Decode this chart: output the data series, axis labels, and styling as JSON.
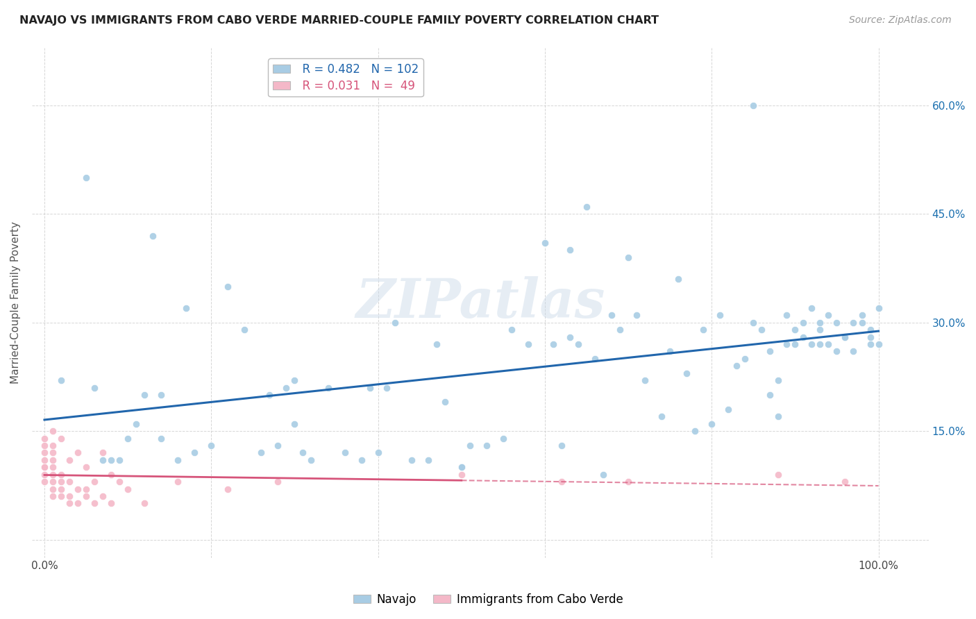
{
  "title": "NAVAJO VS IMMIGRANTS FROM CABO VERDE MARRIED-COUPLE FAMILY POVERTY CORRELATION CHART",
  "source": "Source: ZipAtlas.com",
  "ylabel": "Married-Couple Family Poverty",
  "watermark": "ZIPatlas",
  "legend_blue_r": "R = 0.482",
  "legend_blue_n": "N = 102",
  "legend_pink_r": "R = 0.031",
  "legend_pink_n": "N =  49",
  "blue_color": "#a8cce4",
  "pink_color": "#f4b8c8",
  "blue_line_color": "#2166ac",
  "pink_line_color": "#d6547a",
  "background_color": "#ffffff",
  "xlim": [
    -0.015,
    1.06
  ],
  "ylim": [
    -0.025,
    0.68
  ],
  "navajo_x": [
    0.02,
    0.05,
    0.06,
    0.07,
    0.08,
    0.09,
    0.1,
    0.11,
    0.12,
    0.13,
    0.14,
    0.16,
    0.17,
    0.18,
    0.2,
    0.22,
    0.24,
    0.26,
    0.27,
    0.28,
    0.29,
    0.3,
    0.31,
    0.32,
    0.34,
    0.36,
    0.38,
    0.39,
    0.4,
    0.41,
    0.42,
    0.44,
    0.46,
    0.48,
    0.5,
    0.5,
    0.51,
    0.53,
    0.55,
    0.56,
    0.58,
    0.6,
    0.61,
    0.62,
    0.63,
    0.64,
    0.65,
    0.66,
    0.67,
    0.68,
    0.69,
    0.7,
    0.71,
    0.72,
    0.74,
    0.75,
    0.76,
    0.77,
    0.78,
    0.79,
    0.8,
    0.81,
    0.82,
    0.83,
    0.84,
    0.85,
    0.86,
    0.87,
    0.87,
    0.88,
    0.88,
    0.89,
    0.89,
    0.9,
    0.9,
    0.91,
    0.91,
    0.92,
    0.92,
    0.93,
    0.93,
    0.93,
    0.94,
    0.94,
    0.95,
    0.95,
    0.96,
    0.96,
    0.97,
    0.97,
    0.98,
    0.98,
    0.99,
    0.99,
    0.99,
    1.0,
    1.0,
    0.85,
    0.63,
    0.47,
    0.3,
    0.14
  ],
  "navajo_y": [
    0.22,
    0.5,
    0.21,
    0.11,
    0.11,
    0.11,
    0.14,
    0.16,
    0.2,
    0.42,
    0.2,
    0.11,
    0.32,
    0.12,
    0.13,
    0.35,
    0.29,
    0.12,
    0.2,
    0.13,
    0.21,
    0.16,
    0.12,
    0.11,
    0.21,
    0.12,
    0.11,
    0.21,
    0.12,
    0.21,
    0.3,
    0.11,
    0.11,
    0.19,
    0.1,
    0.1,
    0.13,
    0.13,
    0.14,
    0.29,
    0.27,
    0.41,
    0.27,
    0.13,
    0.28,
    0.27,
    0.46,
    0.25,
    0.09,
    0.31,
    0.29,
    0.39,
    0.31,
    0.22,
    0.17,
    0.26,
    0.36,
    0.23,
    0.15,
    0.29,
    0.16,
    0.31,
    0.18,
    0.24,
    0.25,
    0.3,
    0.29,
    0.2,
    0.26,
    0.17,
    0.22,
    0.27,
    0.31,
    0.27,
    0.29,
    0.28,
    0.3,
    0.27,
    0.32,
    0.29,
    0.27,
    0.3,
    0.27,
    0.31,
    0.3,
    0.26,
    0.28,
    0.28,
    0.3,
    0.26,
    0.31,
    0.3,
    0.29,
    0.28,
    0.27,
    0.32,
    0.27,
    0.6,
    0.4,
    0.27,
    0.22,
    0.14
  ],
  "caboverde_x": [
    0.0,
    0.0,
    0.0,
    0.0,
    0.0,
    0.0,
    0.0,
    0.0,
    0.01,
    0.01,
    0.01,
    0.01,
    0.01,
    0.01,
    0.01,
    0.01,
    0.01,
    0.02,
    0.02,
    0.02,
    0.02,
    0.02,
    0.03,
    0.03,
    0.03,
    0.03,
    0.04,
    0.04,
    0.04,
    0.05,
    0.05,
    0.05,
    0.06,
    0.06,
    0.07,
    0.07,
    0.08,
    0.08,
    0.09,
    0.1,
    0.12,
    0.16,
    0.22,
    0.28,
    0.5,
    0.62,
    0.7,
    0.88,
    0.96
  ],
  "caboverde_y": [
    0.08,
    0.09,
    0.1,
    0.1,
    0.11,
    0.12,
    0.13,
    0.14,
    0.06,
    0.07,
    0.08,
    0.09,
    0.1,
    0.11,
    0.12,
    0.13,
    0.15,
    0.06,
    0.07,
    0.08,
    0.09,
    0.14,
    0.05,
    0.06,
    0.08,
    0.11,
    0.05,
    0.07,
    0.12,
    0.06,
    0.07,
    0.1,
    0.05,
    0.08,
    0.06,
    0.12,
    0.05,
    0.09,
    0.08,
    0.07,
    0.05,
    0.08,
    0.07,
    0.08,
    0.09,
    0.08,
    0.08,
    0.09,
    0.08
  ]
}
